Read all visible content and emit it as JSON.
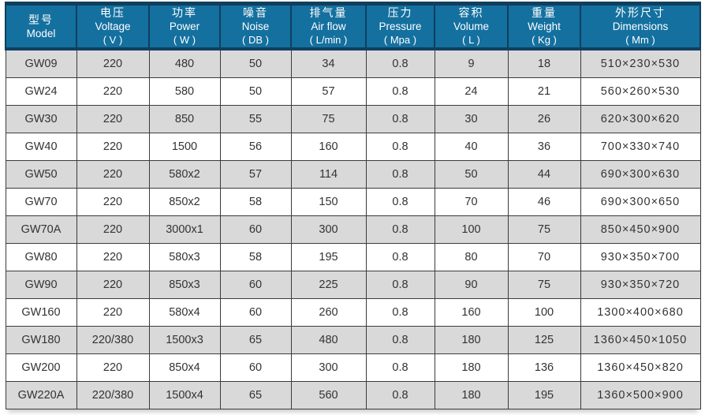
{
  "colors": {
    "header_bg": "#14709f",
    "header_border": "#103f5f",
    "header_text": "#ffffff",
    "stripe_gray": "#d9d9d9",
    "stripe_white": "#ffffff",
    "grid_line": "#3b3b3b",
    "body_text": "#333333"
  },
  "chart_data": {
    "type": "table",
    "title": "",
    "columns": [
      {
        "cn": "型号",
        "en": "Model",
        "unit": ""
      },
      {
        "cn": "电压",
        "en": "Voltage",
        "unit": "( V )"
      },
      {
        "cn": "功率",
        "en": "Power",
        "unit": "( W )"
      },
      {
        "cn": "噪音",
        "en": "Noise",
        "unit": "( DB )"
      },
      {
        "cn": "排气量",
        "en": "Air flow",
        "unit": "( L/min )"
      },
      {
        "cn": "压力",
        "en": "Pressure",
        "unit": "( Mpa )"
      },
      {
        "cn": "容积",
        "en": "Volume",
        "unit": "( L )"
      },
      {
        "cn": "重量",
        "en": "Weight",
        "unit": "( Kg )"
      },
      {
        "cn": "外形尺寸",
        "en": "Dimensions",
        "unit": "( Mm )"
      }
    ],
    "rows": [
      [
        "GW09",
        "220",
        "480",
        "50",
        "34",
        "0.8",
        "9",
        "18",
        "510×230×530"
      ],
      [
        "GW24",
        "220",
        "580",
        "50",
        "57",
        "0.8",
        "24",
        "21",
        "560×260×530"
      ],
      [
        "GW30",
        "220",
        "850",
        "55",
        "75",
        "0.8",
        "30",
        "26",
        "620×300×620"
      ],
      [
        "GW40",
        "220",
        "1500",
        "56",
        "160",
        "0.8",
        "40",
        "36",
        "700×330×740"
      ],
      [
        "GW50",
        "220",
        "580x2",
        "57",
        "114",
        "0.8",
        "50",
        "44",
        "690×300×630"
      ],
      [
        "GW70",
        "220",
        "850x2",
        "58",
        "150",
        "0.8",
        "70",
        "46",
        "690×300×650"
      ],
      [
        "GW70A",
        "220",
        "3000x1",
        "60",
        "300",
        "0.8",
        "100",
        "75",
        "850×450×900"
      ],
      [
        "GW80",
        "220",
        "580x3",
        "58",
        "195",
        "0.8",
        "80",
        "70",
        "930×350×700"
      ],
      [
        "GW90",
        "220",
        "850x3",
        "60",
        "225",
        "0.8",
        "90",
        "75",
        "930×350×720"
      ],
      [
        "GW160",
        "220",
        "580x4",
        "60",
        "260",
        "0.8",
        "160",
        "100",
        "1300×400×680"
      ],
      [
        "GW180",
        "220/380",
        "1500x3",
        "65",
        "480",
        "0.8",
        "180",
        "125",
        "1360×450×1050"
      ],
      [
        "GW200",
        "220",
        "850x4",
        "60",
        "300",
        "0.8",
        "180",
        "136",
        "1360×450×820"
      ],
      [
        "GW220A",
        "220/380",
        "1500x4",
        "65",
        "560",
        "0.8",
        "180",
        "195",
        "1360×500×900"
      ]
    ]
  }
}
